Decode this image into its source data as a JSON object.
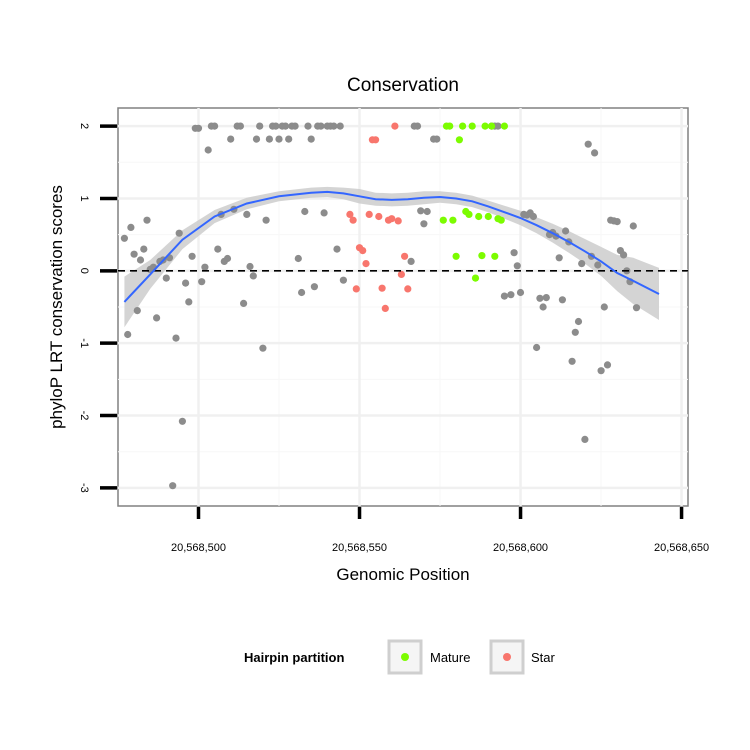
{
  "chart_data": {
    "type": "scatter",
    "title": "Conservation",
    "xlabel": "Genomic Position",
    "ylabel": "phyloP LRT conservation scores",
    "xlim": [
      20568475,
      20568652
    ],
    "ylim": [
      -3.25,
      2.25
    ],
    "x_ticks": [
      20568500,
      20568550,
      20568600,
      20568650
    ],
    "x_tick_labels": [
      "20,568,500",
      "20,568,550",
      "20,568,600",
      "20,568,650"
    ],
    "y_ticks": [
      -3,
      -2,
      -1,
      0,
      1,
      2
    ],
    "y_tick_labels": [
      "-3",
      "-2",
      "-1",
      "0",
      "1",
      "2"
    ],
    "reference_line": {
      "y": 0,
      "style": "dashed",
      "color": "#000000"
    },
    "grid": true,
    "legend": {
      "title": "Hairpin partition",
      "position": "bottom",
      "items": [
        {
          "label": "Mature",
          "color": "#7CFC00"
        },
        {
          "label": "Star",
          "color": "#F8766D"
        }
      ]
    },
    "colors": {
      "other": "#8c8c8c",
      "Mature": "#7CFC00",
      "Star": "#F8766D",
      "smooth": "#3366FF",
      "ribbon": "#cccccc"
    },
    "smooth": {
      "x": [
        20568477,
        20568485,
        20568495,
        20568505,
        20568515,
        20568525,
        20568535,
        20568540,
        20568545,
        20568550,
        20568555,
        20568560,
        20568565,
        20568570,
        20568575,
        20568580,
        20568585,
        20568590,
        20568595,
        20568600,
        20568605,
        20568610,
        20568615,
        20568620,
        20568625,
        20568630,
        20568635,
        20568643
      ],
      "y": [
        -0.43,
        -0.05,
        0.43,
        0.75,
        0.93,
        1.03,
        1.08,
        1.09,
        1.07,
        1.03,
        0.99,
        0.98,
        0.99,
        1.01,
        1.02,
        1.0,
        0.96,
        0.89,
        0.81,
        0.73,
        0.63,
        0.52,
        0.4,
        0.27,
        0.13,
        -0.03,
        -0.14,
        -0.32
      ],
      "lower": [
        -0.78,
        -0.25,
        0.3,
        0.66,
        0.85,
        0.96,
        1.01,
        1.02,
        0.99,
        0.93,
        0.9,
        0.89,
        0.9,
        0.92,
        0.94,
        0.92,
        0.88,
        0.81,
        0.72,
        0.63,
        0.52,
        0.39,
        0.25,
        0.1,
        -0.07,
        -0.28,
        -0.46,
        -0.68
      ],
      "upper": [
        -0.08,
        0.15,
        0.56,
        0.84,
        1.01,
        1.1,
        1.15,
        1.16,
        1.15,
        1.13,
        1.08,
        1.07,
        1.08,
        1.1,
        1.1,
        1.08,
        1.04,
        0.97,
        0.9,
        0.83,
        0.74,
        0.65,
        0.55,
        0.44,
        0.33,
        0.22,
        0.18,
        0.04
      ]
    },
    "series": [
      {
        "name": "Other",
        "points": [
          [
            20568477,
            0.45
          ],
          [
            20568478,
            -0.88
          ],
          [
            20568479,
            0.6
          ],
          [
            20568480,
            0.23
          ],
          [
            20568481,
            -0.55
          ],
          [
            20568482,
            0.15
          ],
          [
            20568483,
            0.3
          ],
          [
            20568484,
            0.7
          ],
          [
            20568485,
            0.02
          ],
          [
            20568486,
            0.05
          ],
          [
            20568487,
            -0.65
          ],
          [
            20568488,
            0.13
          ],
          [
            20568489,
            0.15
          ],
          [
            20568490,
            -0.1
          ],
          [
            20568491,
            0.18
          ],
          [
            20568492,
            -2.97
          ],
          [
            20568493,
            -0.93
          ],
          [
            20568494,
            0.52
          ],
          [
            20568495,
            -2.08
          ],
          [
            20568496,
            -0.17
          ],
          [
            20568497,
            -0.43
          ],
          [
            20568498,
            0.2
          ],
          [
            20568499,
            1.97
          ],
          [
            20568500,
            1.97
          ],
          [
            20568501,
            -0.15
          ],
          [
            20568502,
            0.05
          ],
          [
            20568503,
            1.67
          ],
          [
            20568504,
            2.0
          ],
          [
            20568505,
            2.0
          ],
          [
            20568506,
            0.3
          ],
          [
            20568507,
            0.78
          ],
          [
            20568508,
            0.13
          ],
          [
            20568509,
            0.17
          ],
          [
            20568510,
            1.82
          ],
          [
            20568511,
            0.85
          ],
          [
            20568512,
            2.0
          ],
          [
            20568513,
            2.0
          ],
          [
            20568514,
            -0.45
          ],
          [
            20568515,
            0.78
          ],
          [
            20568516,
            0.06
          ],
          [
            20568517,
            -0.07
          ],
          [
            20568518,
            1.82
          ],
          [
            20568519,
            2.0
          ],
          [
            20568520,
            -1.07
          ],
          [
            20568521,
            0.7
          ],
          [
            20568522,
            1.82
          ],
          [
            20568523,
            2.0
          ],
          [
            20568524,
            2.0
          ],
          [
            20568525,
            1.82
          ],
          [
            20568526,
            2.0
          ],
          [
            20568527,
            2.0
          ],
          [
            20568528,
            1.82
          ],
          [
            20568529,
            2.0
          ],
          [
            20568530,
            2.0
          ],
          [
            20568531,
            0.17
          ],
          [
            20568532,
            -0.3
          ],
          [
            20568533,
            0.82
          ],
          [
            20568534,
            2.0
          ],
          [
            20568535,
            1.82
          ],
          [
            20568536,
            -0.22
          ],
          [
            20568537,
            2.0
          ],
          [
            20568538,
            2.0
          ],
          [
            20568539,
            0.8
          ],
          [
            20568540,
            2.0
          ],
          [
            20568541,
            2.0
          ],
          [
            20568542,
            2.0
          ],
          [
            20568543,
            0.3
          ],
          [
            20568544,
            2.0
          ],
          [
            20568545,
            -0.13
          ],
          [
            20568566,
            0.13
          ],
          [
            20568567,
            2.0
          ],
          [
            20568568,
            2.0
          ],
          [
            20568569,
            0.83
          ],
          [
            20568570,
            0.65
          ],
          [
            20568571,
            0.82
          ],
          [
            20568573,
            1.82
          ],
          [
            20568574,
            1.82
          ],
          [
            20568591,
            2.0
          ],
          [
            20568592,
            2.0
          ],
          [
            20568593,
            2.0
          ],
          [
            20568595,
            -0.35
          ],
          [
            20568597,
            -0.33
          ],
          [
            20568598,
            0.25
          ],
          [
            20568599,
            0.07
          ],
          [
            20568600,
            -0.3
          ],
          [
            20568601,
            0.78
          ],
          [
            20568602,
            0.77
          ],
          [
            20568603,
            0.8
          ],
          [
            20568604,
            0.75
          ],
          [
            20568605,
            -1.06
          ],
          [
            20568606,
            -0.38
          ],
          [
            20568607,
            -0.5
          ],
          [
            20568608,
            -0.37
          ],
          [
            20568609,
            0.5
          ],
          [
            20568610,
            0.53
          ],
          [
            20568611,
            0.48
          ],
          [
            20568612,
            0.18
          ],
          [
            20568613,
            -0.4
          ],
          [
            20568614,
            0.55
          ],
          [
            20568615,
            0.4
          ],
          [
            20568616,
            -1.25
          ],
          [
            20568617,
            -0.85
          ],
          [
            20568618,
            -0.7
          ],
          [
            20568619,
            0.1
          ],
          [
            20568620,
            -2.33
          ],
          [
            20568621,
            1.75
          ],
          [
            20568622,
            0.2
          ],
          [
            20568623,
            1.63
          ],
          [
            20568624,
            0.08
          ],
          [
            20568625,
            -1.38
          ],
          [
            20568626,
            -0.5
          ],
          [
            20568627,
            -1.3
          ],
          [
            20568628,
            0.7
          ],
          [
            20568629,
            0.69
          ],
          [
            20568630,
            0.68
          ],
          [
            20568631,
            0.28
          ],
          [
            20568632,
            0.22
          ],
          [
            20568633,
            0.0
          ],
          [
            20568634,
            -0.15
          ],
          [
            20568635,
            0.62
          ],
          [
            20568636,
            -0.51
          ]
        ]
      },
      {
        "name": "Mature",
        "points": [
          [
            20568576,
            0.7
          ],
          [
            20568577,
            2.0
          ],
          [
            20568578,
            2.0
          ],
          [
            20568579,
            0.7
          ],
          [
            20568580,
            0.2
          ],
          [
            20568581,
            1.81
          ],
          [
            20568582,
            2.0
          ],
          [
            20568583,
            0.82
          ],
          [
            20568584,
            0.78
          ],
          [
            20568585,
            2.0
          ],
          [
            20568586,
            -0.1
          ],
          [
            20568587,
            0.75
          ],
          [
            20568588,
            0.21
          ],
          [
            20568589,
            2.0
          ],
          [
            20568590,
            0.75
          ],
          [
            20568591,
            2.0
          ],
          [
            20568592,
            0.2
          ],
          [
            20568593,
            0.72
          ],
          [
            20568594,
            0.7
          ],
          [
            20568595,
            2.0
          ]
        ]
      },
      {
        "name": "Star",
        "points": [
          [
            20568547,
            0.78
          ],
          [
            20568548,
            0.7
          ],
          [
            20568549,
            -0.25
          ],
          [
            20568550,
            0.32
          ],
          [
            20568551,
            0.28
          ],
          [
            20568552,
            0.1
          ],
          [
            20568553,
            0.78
          ],
          [
            20568554,
            1.81
          ],
          [
            20568555,
            1.81
          ],
          [
            20568556,
            0.75
          ],
          [
            20568557,
            -0.24
          ],
          [
            20568558,
            -0.52
          ],
          [
            20568559,
            0.7
          ],
          [
            20568560,
            0.72
          ],
          [
            20568561,
            2.0
          ],
          [
            20568562,
            0.69
          ],
          [
            20568563,
            -0.05
          ],
          [
            20568564,
            0.2
          ],
          [
            20568565,
            -0.25
          ]
        ]
      }
    ]
  }
}
